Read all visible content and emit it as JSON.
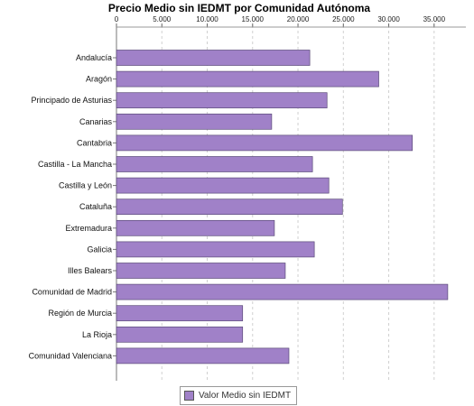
{
  "chart_data": {
    "type": "bar",
    "orientation": "horizontal",
    "title": "Precio Medio sin IEDMT por Comunidad Autónoma",
    "categories": [
      "Andalucía",
      "Aragón",
      "Principado de Asturias",
      "Canarias",
      "Cantabria",
      "Castilla - La Mancha",
      "Castilla y León",
      "Cataluña",
      "Extremadura",
      "Galicia",
      "Illes Balears",
      "Comunidad de Madrid",
      "Región de Murcia",
      "La Rioja",
      "Comunidad Valenciana"
    ],
    "series": [
      {
        "name": "Valor Medio sin IEDMT",
        "color": "#a081c8",
        "values": [
          21300,
          28900,
          23200,
          17100,
          32600,
          21600,
          23400,
          24900,
          17400,
          21800,
          18600,
          36500,
          13900,
          13900,
          19000
        ]
      }
    ],
    "x_ticks": [
      "0",
      "5.000",
      "10.000",
      "15.000",
      "20.000",
      "25.000",
      "30.000",
      "35.000"
    ],
    "x_tick_values": [
      0,
      5000,
      10000,
      15000,
      20000,
      25000,
      30000,
      35000
    ],
    "xlim": [
      0,
      38500
    ],
    "axis_position": "top",
    "grid": "vertical-dashed",
    "legend_position": "bottom-center"
  }
}
